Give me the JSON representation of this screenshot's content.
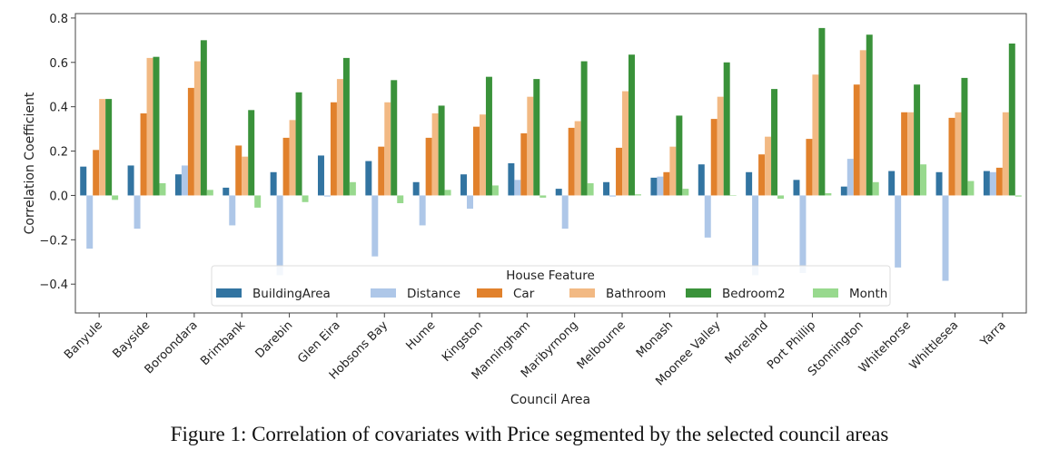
{
  "chart_data": {
    "type": "bar",
    "xlabel": "Council Area",
    "ylabel": "Correlation Coefficient",
    "ylim": [
      -0.53,
      0.82
    ],
    "yticks": [
      -0.4,
      -0.2,
      0.0,
      0.2,
      0.4,
      0.6,
      0.8
    ],
    "ytick_labels": [
      "−0.4",
      "−0.2",
      "0.0",
      "0.2",
      "0.4",
      "0.6",
      "0.8"
    ],
    "grid": false,
    "legend": {
      "title": "House Feature",
      "placement": "bottom-center"
    },
    "categories": [
      "Banyule",
      "Bayside",
      "Boroondara",
      "Brimbank",
      "Darebin",
      "Glen Eira",
      "Hobsons Bay",
      "Hume",
      "Kingston",
      "Manningham",
      "Maribyrnong",
      "Melbourne",
      "Monash",
      "Moonee Valley",
      "Moreland",
      "Port Phillip",
      "Stonnington",
      "Whitehorse",
      "Whittlesea",
      "Yarra"
    ],
    "series": [
      {
        "name": "BuildingArea",
        "color": "#3274a1",
        "values": [
          0.13,
          0.135,
          0.095,
          0.035,
          0.105,
          0.18,
          0.155,
          0.06,
          0.095,
          0.145,
          0.03,
          0.06,
          0.08,
          0.14,
          0.105,
          0.07,
          0.04,
          0.11,
          0.105,
          0.11
        ]
      },
      {
        "name": "Distance",
        "color": "#aec7e8",
        "values": [
          -0.24,
          -0.15,
          0.135,
          -0.135,
          -0.36,
          -0.005,
          -0.275,
          -0.135,
          -0.06,
          0.07,
          -0.15,
          -0.005,
          0.085,
          -0.19,
          -0.36,
          -0.35,
          0.165,
          -0.325,
          -0.385,
          0.105
        ]
      },
      {
        "name": "Car",
        "color": "#e1812c",
        "values": [
          0.205,
          0.37,
          0.485,
          0.225,
          0.26,
          0.42,
          0.22,
          0.26,
          0.31,
          0.28,
          0.305,
          0.215,
          0.105,
          0.345,
          0.185,
          0.255,
          0.5,
          0.375,
          0.35,
          0.125
        ]
      },
      {
        "name": "Bathroom",
        "color": "#f2b983",
        "values": [
          0.435,
          0.62,
          0.605,
          0.175,
          0.34,
          0.525,
          0.42,
          0.37,
          0.365,
          0.445,
          0.335,
          0.47,
          0.22,
          0.445,
          0.265,
          0.545,
          0.655,
          0.375,
          0.375,
          0.375
        ]
      },
      {
        "name": "Bedroom2",
        "color": "#3a923a",
        "values": [
          0.435,
          0.625,
          0.7,
          0.385,
          0.465,
          0.62,
          0.52,
          0.405,
          0.535,
          0.525,
          0.605,
          0.635,
          0.36,
          0.6,
          0.48,
          0.755,
          0.725,
          0.5,
          0.53,
          0.685
        ]
      },
      {
        "name": "Month",
        "color": "#98d98e",
        "values": [
          -0.02,
          0.055,
          0.025,
          -0.055,
          -0.03,
          0.06,
          -0.035,
          0.025,
          0.045,
          -0.01,
          0.055,
          0.005,
          0.03,
          0.0,
          -0.015,
          0.01,
          0.06,
          0.14,
          0.065,
          -0.005
        ]
      }
    ]
  },
  "caption": "Figure 1: Correlation of covariates with Price segmented by the selected council areas"
}
